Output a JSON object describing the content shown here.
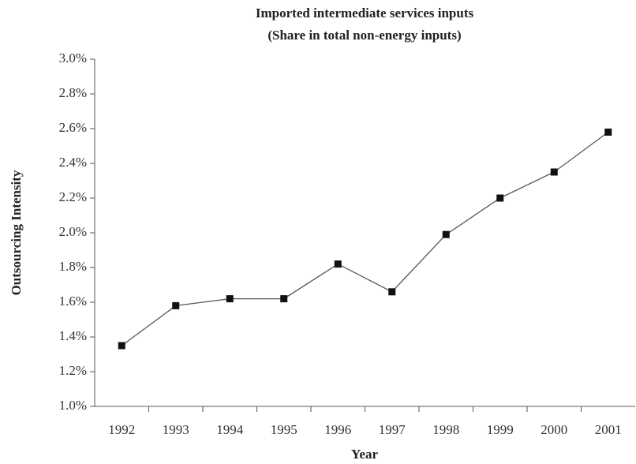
{
  "chart_data": {
    "type": "line",
    "title": "Imported intermediate services inputs",
    "subtitle": "(Share in total non-energy inputs)",
    "x_label": "Year",
    "y_label": "Outsourcing Intensity",
    "categories": [
      "1992",
      "1993",
      "1994",
      "1995",
      "1996",
      "1997",
      "1998",
      "1999",
      "2000",
      "2001"
    ],
    "series": [
      {
        "name": "Outsourcing Intensity",
        "color": "#555555",
        "values": [
          1.35,
          1.58,
          1.62,
          1.62,
          1.82,
          1.66,
          1.99,
          2.2,
          2.35,
          2.58
        ]
      }
    ],
    "ylim": [
      1.0,
      3.0
    ],
    "yticks": [
      {
        "value": 1.0,
        "label": "1.0%"
      },
      {
        "value": 1.2,
        "label": "1.2%"
      },
      {
        "value": 1.4,
        "label": "1.4%"
      },
      {
        "value": 1.6,
        "label": "1.6%"
      },
      {
        "value": 1.8,
        "label": "1.8%"
      },
      {
        "value": 2.0,
        "label": "2.0%"
      },
      {
        "value": 2.2,
        "label": "2.2%"
      },
      {
        "value": 2.4,
        "label": "2.4%"
      },
      {
        "value": 2.6,
        "label": "2.6%"
      },
      {
        "value": 2.8,
        "label": "2.8%"
      },
      {
        "value": 3.0,
        "label": "3.0%"
      }
    ],
    "grid": false,
    "marker_color": "#111111"
  }
}
